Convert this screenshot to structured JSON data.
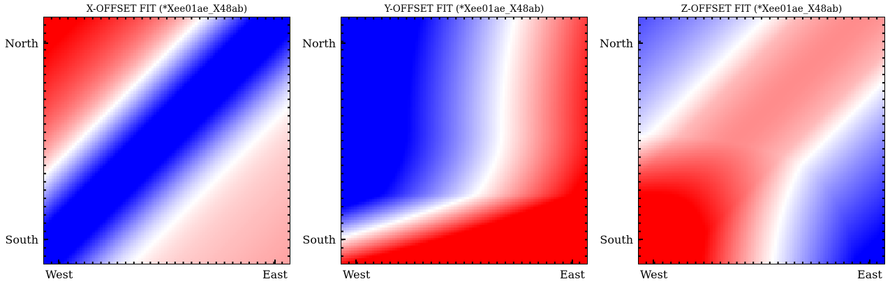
{
  "chart_data": [
    {
      "type": "heatmap",
      "title": "X-OFFSET FIT (*Xee01ae_X48ab)",
      "x_tick_labels": [
        "West",
        "East"
      ],
      "y_tick_labels": [
        "North",
        "South"
      ],
      "colormap": "bwr",
      "colors": {
        "low": "#0000ff",
        "mid": "#ffffff",
        "high": "#ff0000"
      },
      "pattern": "diagonal blue band from bottom-left to top-right; red at top-left, light red at bottom-right"
    },
    {
      "type": "heatmap",
      "title": "Y-OFFSET FIT (*Xee01ae_X48ab)",
      "x_tick_labels": [
        "West",
        "East"
      ],
      "y_tick_labels": [
        "North",
        "South"
      ],
      "colormap": "bwr",
      "colors": {
        "low": "#0000ff",
        "mid": "#ffffff",
        "high": "#ff0000"
      },
      "pattern": "blue at top-left, red along right edge and bottom; white curved boundary"
    },
    {
      "type": "heatmap",
      "title": "Z-OFFSET FIT (*Xee01ae_X48ab)",
      "x_tick_labels": [
        "West",
        "East"
      ],
      "y_tick_labels": [
        "North",
        "South"
      ],
      "colormap": "bwr",
      "colors": {
        "low": "#0000ff",
        "mid": "#ffffff",
        "high": "#ff0000"
      },
      "pattern": "blue at top-left and bottom-right corners, red at bottom-left, pink diagonal band toward top-right"
    }
  ]
}
